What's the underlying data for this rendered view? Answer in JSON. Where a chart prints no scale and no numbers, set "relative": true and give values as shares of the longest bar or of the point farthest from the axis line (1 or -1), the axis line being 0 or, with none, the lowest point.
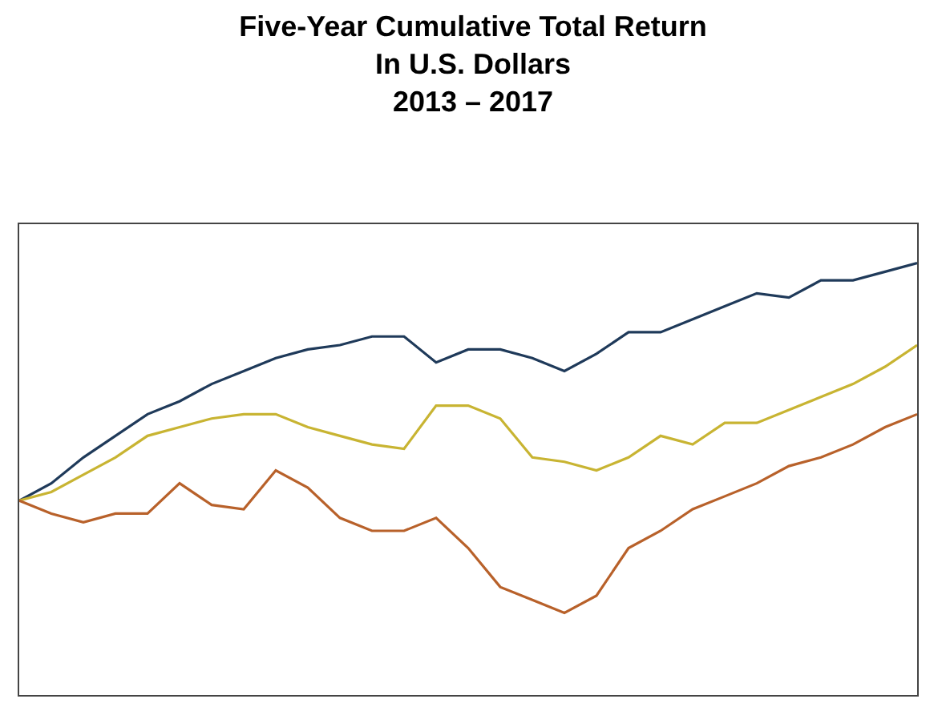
{
  "chart_data": {
    "type": "line",
    "title": "Five-Year Cumulative Total Return\nIn U.S. Dollars\n2013 – 2017",
    "relative": true,
    "categories": [
      null,
      null,
      null,
      null,
      null,
      null,
      null,
      null,
      null,
      null,
      null,
      null,
      null,
      null,
      null,
      null,
      null,
      null,
      null,
      null,
      null,
      null,
      null,
      null,
      null,
      null,
      null,
      null,
      null
    ],
    "series": [
      {
        "color": "#1f3a5a",
        "values": [
          0.45,
          0.49,
          0.55,
          0.6,
          0.65,
          0.68,
          0.72,
          0.75,
          0.78,
          0.8,
          0.81,
          0.83,
          0.83,
          0.77,
          0.8,
          0.8,
          0.78,
          0.75,
          0.79,
          0.84,
          0.84,
          0.87,
          0.9,
          0.93,
          0.92,
          0.96,
          0.96,
          0.98,
          1.0
        ]
      },
      {
        "color": "#c8b432",
        "values": [
          0.45,
          0.47,
          0.51,
          0.55,
          0.6,
          0.62,
          0.64,
          0.65,
          0.65,
          0.62,
          0.6,
          0.58,
          0.57,
          0.67,
          0.67,
          0.64,
          0.55,
          0.54,
          0.52,
          0.55,
          0.6,
          0.58,
          0.63,
          0.63,
          0.66,
          0.69,
          0.72,
          0.76,
          0.81
        ]
      },
      {
        "color": "#b8612a",
        "values": [
          0.45,
          0.42,
          0.4,
          0.42,
          0.42,
          0.49,
          0.44,
          0.43,
          0.52,
          0.48,
          0.41,
          0.38,
          0.38,
          0.41,
          0.34,
          0.25,
          0.22,
          0.19,
          0.23,
          0.34,
          0.38,
          0.43,
          0.46,
          0.49,
          0.53,
          0.55,
          0.58,
          0.62,
          0.65
        ]
      }
    ],
    "marker": "none",
    "line_style": "solid"
  }
}
